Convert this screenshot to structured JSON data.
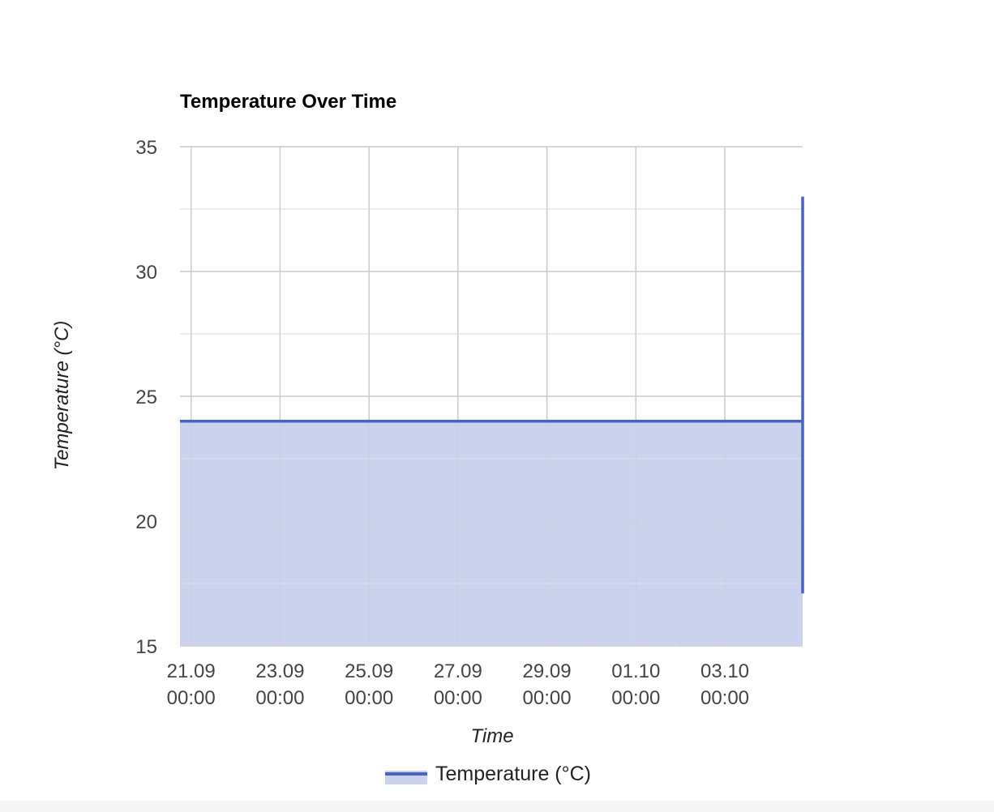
{
  "chart_data": {
    "type": "area",
    "title": "Temperature Over Time",
    "xlabel": "Time",
    "ylabel": "Temperature (°C)",
    "ylim": [
      15,
      35
    ],
    "y_ticks": [
      "35",
      "30",
      "25",
      "20",
      "15"
    ],
    "x_ticks": [
      {
        "date": "21.09",
        "time": "00:00"
      },
      {
        "date": "23.09",
        "time": "00:00"
      },
      {
        "date": "25.09",
        "time": "00:00"
      },
      {
        "date": "27.09",
        "time": "00:00"
      },
      {
        "date": "29.09",
        "time": "00:00"
      },
      {
        "date": "01.10",
        "time": "00:00"
      },
      {
        "date": "03.10",
        "time": "00:00"
      }
    ],
    "series": [
      {
        "name": "Temperature (°C)",
        "color": "#4a63bf",
        "fill_color": "#cbd2ee",
        "points": [
          {
            "x": "20.09 18:00",
            "y": 24
          },
          {
            "x": "04.10 18:00",
            "y": 24
          },
          {
            "x": "04.10 18:00",
            "y": 33
          },
          {
            "x": "04.10 18:00",
            "y": 17.1
          }
        ]
      }
    ],
    "grid": true,
    "legend": "bottom"
  }
}
